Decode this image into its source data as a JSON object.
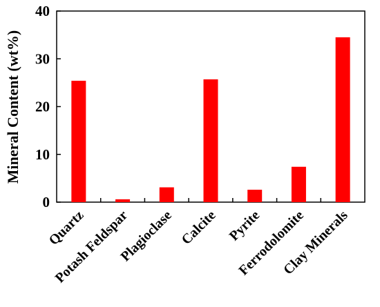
{
  "chart_data": {
    "type": "bar",
    "categories": [
      "Quartz",
      "Potash Feldspar",
      "Plagioclase",
      "Calcite",
      "Pyrite",
      "Ferrodolomite",
      "Clay Minerals"
    ],
    "values": [
      25.4,
      0.6,
      3.1,
      25.7,
      2.6,
      7.4,
      34.5
    ],
    "ylabel": "Mineral Content (wt%)",
    "xlabel": "",
    "title": "",
    "ylim": [
      0,
      40
    ],
    "yticks": [
      0,
      10,
      20,
      30,
      40
    ],
    "bar_color": "#ff0000",
    "grid": false,
    "legend": "none"
  }
}
